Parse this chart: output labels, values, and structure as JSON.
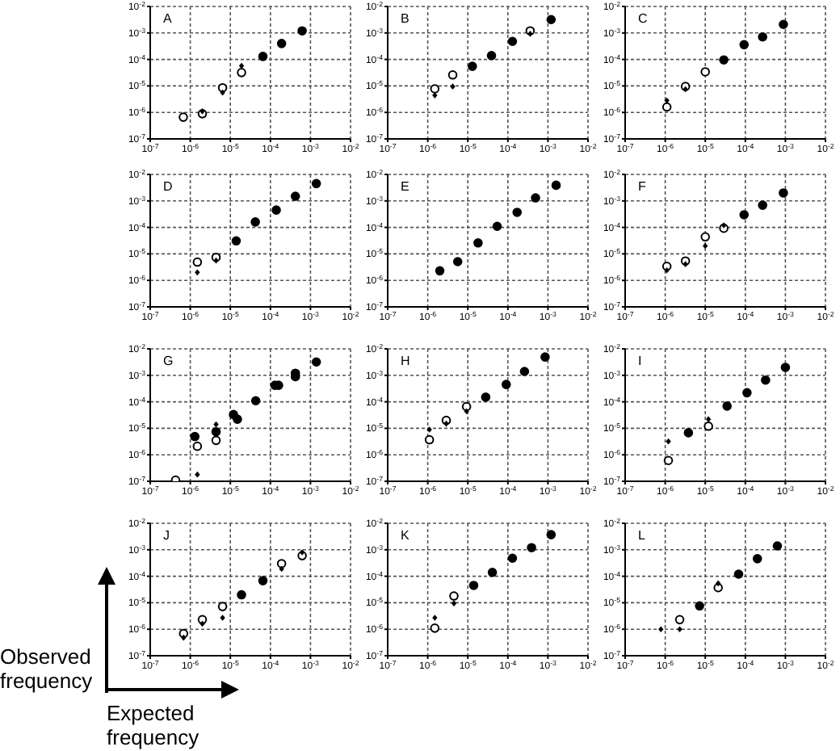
{
  "chart_data": [
    {
      "type": "scatter",
      "title": "A",
      "xlim": [
        1e-07,
        0.01
      ],
      "ylim": [
        1e-07,
        0.01
      ],
      "xticks": [
        {
          "value": 1e-07,
          "label": "10$^{-7}$"
        },
        {
          "value": 1e-06,
          "label": "10$^{-6}$"
        },
        {
          "value": 1e-05,
          "label": "10$^{-5}$"
        },
        {
          "value": 0.0001,
          "label": "10$^{-4}$"
        },
        {
          "value": 0.001,
          "label": "10$^{-3}$"
        },
        {
          "value": 0.01,
          "label": "10$^{-2}$"
        }
      ],
      "yticks": [
        {
          "value": 1e-07,
          "label": "10$^{-7}$"
        },
        {
          "value": 1e-06,
          "label": "10$^{-6}$"
        },
        {
          "value": 1e-05,
          "label": "10$^{-5}$"
        },
        {
          "value": 0.0001,
          "label": "10$^{-4}$"
        },
        {
          "value": 0.001,
          "label": "10$^{-3}$"
        },
        {
          "value": 0.01,
          "label": "10$^{-2}$"
        }
      ],
      "log": "xy",
      "grid": true,
      "series": [
        {
          "color": "#000000",
          "marker": "circle",
          "x": [
            0.00062,
            0.00019,
            6.5e-05
          ],
          "values": [
            0.0012,
            0.0004,
            0.00013
          ]
        },
        {
          "color": "#ffffff",
          "marker": "circle",
          "x": [
            1.9e-05,
            6.4e-06,
            2e-06,
            6.7e-07
          ],
          "values": [
            3.2e-05,
            8.5e-06,
            8.9e-07,
            6.6e-07
          ]
        },
        {
          "color": "#000000",
          "marker": "diamond",
          "x": [
            1.9e-05,
            6.4e-06,
            2e-06
          ],
          "values": [
            5.7e-05,
            5.6e-06,
            1.1e-06
          ]
        }
      ]
    },
    {
      "type": "scatter",
      "title": "B",
      "xlim": [
        1e-07,
        0.01
      ],
      "ylim": [
        1e-07,
        0.01
      ],
      "xticks": [
        {
          "value": 1e-07,
          "label": "10$^{-7}$"
        },
        {
          "value": 1e-06,
          "label": "10$^{-6}$"
        },
        {
          "value": 1e-05,
          "label": "10$^{-5}$"
        },
        {
          "value": 0.0001,
          "label": "10$^{-4}$"
        },
        {
          "value": 0.001,
          "label": "10$^{-3}$"
        },
        {
          "value": 0.01,
          "label": "10$^{-2}$"
        }
      ],
      "yticks": [
        {
          "value": 1e-07,
          "label": "10$^{-7}$"
        },
        {
          "value": 1e-06,
          "label": "10$^{-6}$"
        },
        {
          "value": 1e-05,
          "label": "10$^{-5}$"
        },
        {
          "value": 0.0001,
          "label": "10$^{-4}$"
        },
        {
          "value": 0.001,
          "label": "10$^{-3}$"
        },
        {
          "value": 0.01,
          "label": "10$^{-2}$"
        }
      ],
      "log": "xy",
      "grid": true,
      "series": [
        {
          "color": "#000000",
          "marker": "circle",
          "x": [
            0.0012,
            0.00013,
            3.9e-05,
            1.3e-05
          ],
          "values": [
            0.0032,
            0.00048,
            0.00014,
            5.5e-05
          ]
        },
        {
          "color": "#ffffff",
          "marker": "circle",
          "x": [
            0.00036,
            4.2e-06,
            1.5e-06
          ],
          "values": [
            0.0012,
            2.6e-05,
            7.8e-06
          ]
        },
        {
          "color": "#000000",
          "marker": "diamond",
          "x": [
            0.00036,
            4.2e-06,
            1.5e-06
          ],
          "values": [
            0.00093,
            9.5e-06,
            4.4e-06
          ]
        }
      ]
    },
    {
      "type": "scatter",
      "title": "C",
      "xlim": [
        1e-07,
        0.01
      ],
      "ylim": [
        1e-07,
        0.01
      ],
      "xticks": [
        {
          "value": 1e-07,
          "label": "10$^{-7}$"
        },
        {
          "value": 1e-06,
          "label": "10$^{-6}$"
        },
        {
          "value": 1e-05,
          "label": "10$^{-5}$"
        },
        {
          "value": 0.0001,
          "label": "10$^{-4}$"
        },
        {
          "value": 0.001,
          "label": "10$^{-3}$"
        },
        {
          "value": 0.01,
          "label": "10$^{-2}$"
        }
      ],
      "yticks": [
        {
          "value": 1e-07,
          "label": "10$^{-7}$"
        },
        {
          "value": 1e-06,
          "label": "10$^{-6}$"
        },
        {
          "value": 1e-05,
          "label": "10$^{-5}$"
        },
        {
          "value": 0.0001,
          "label": "10$^{-4}$"
        },
        {
          "value": 0.001,
          "label": "10$^{-3}$"
        },
        {
          "value": 0.01,
          "label": "10$^{-2}$"
        }
      ],
      "log": "xy",
      "grid": true,
      "series": [
        {
          "color": "#000000",
          "marker": "circle",
          "x": [
            0.00089,
            0.00027,
            9.3e-05,
            2.9e-05
          ],
          "values": [
            0.0021,
            0.00071,
            0.00036,
            9.6e-05
          ]
        },
        {
          "color": "#ffffff",
          "marker": "circle",
          "x": [
            1e-05,
            3.2e-06,
            1.1e-06
          ],
          "values": [
            3.4e-05,
            9.5e-06,
            1.6e-06
          ]
        },
        {
          "color": "#000000",
          "marker": "diamond",
          "x": [
            3.2e-06,
            1.1e-06
          ],
          "values": [
            7.5e-06,
            2.8e-06
          ]
        }
      ]
    },
    {
      "type": "scatter",
      "title": "D",
      "xlim": [
        1e-07,
        0.01
      ],
      "ylim": [
        1e-07,
        0.01
      ],
      "xticks": [
        {
          "value": 1e-07,
          "label": "10$^{-7}$"
        },
        {
          "value": 1e-06,
          "label": "10$^{-6}$"
        },
        {
          "value": 1e-05,
          "label": "10$^{-5}$"
        },
        {
          "value": 0.0001,
          "label": "10$^{-4}$"
        },
        {
          "value": 0.001,
          "label": "10$^{-3}$"
        },
        {
          "value": 0.01,
          "label": "10$^{-2}$"
        }
      ],
      "yticks": [
        {
          "value": 1e-07,
          "label": "10$^{-7}$"
        },
        {
          "value": 1e-06,
          "label": "10$^{-6}$"
        },
        {
          "value": 1e-05,
          "label": "10$^{-5}$"
        },
        {
          "value": 0.0001,
          "label": "10$^{-4}$"
        },
        {
          "value": 0.001,
          "label": "10$^{-3}$"
        },
        {
          "value": 0.01,
          "label": "10$^{-2}$"
        }
      ],
      "log": "xy",
      "grid": true,
      "series": [
        {
          "color": "#000000",
          "marker": "circle",
          "x": [
            0.0014,
            0.00042,
            0.00014,
            4.2e-05,
            1.4e-05
          ],
          "values": [
            0.0045,
            0.0015,
            0.00045,
            0.00016,
            3.1e-05
          ]
        },
        {
          "color": "#ffffff",
          "marker": "circle",
          "x": [
            4.4e-06,
            1.5e-06
          ],
          "values": [
            7.4e-06,
            4.9e-06
          ]
        },
        {
          "color": "#000000",
          "marker": "diamond",
          "x": [
            4.4e-06,
            1.5e-06
          ],
          "values": [
            5.6e-06,
            2e-06
          ]
        }
      ]
    },
    {
      "type": "scatter",
      "title": "E",
      "xlim": [
        1e-07,
        0.01
      ],
      "ylim": [
        1e-07,
        0.01
      ],
      "xticks": [
        {
          "value": 1e-07,
          "label": "10$^{-7}$"
        },
        {
          "value": 1e-06,
          "label": "10$^{-6}$"
        },
        {
          "value": 1e-05,
          "label": "10$^{-5}$"
        },
        {
          "value": 0.0001,
          "label": "10$^{-4}$"
        },
        {
          "value": 0.001,
          "label": "10$^{-3}$"
        },
        {
          "value": 0.01,
          "label": "10$^{-2}$"
        }
      ],
      "yticks": [
        {
          "value": 1e-07,
          "label": "10$^{-7}$"
        },
        {
          "value": 1e-06,
          "label": "10$^{-6}$"
        },
        {
          "value": 1e-05,
          "label": "10$^{-5}$"
        },
        {
          "value": 0.0001,
          "label": "10$^{-4}$"
        },
        {
          "value": 0.001,
          "label": "10$^{-3}$"
        },
        {
          "value": 0.01,
          "label": "10$^{-2}$"
        }
      ],
      "log": "xy",
      "grid": true,
      "series": [
        {
          "color": "#000000",
          "marker": "circle",
          "x": [
            0.0016,
            0.00049,
            0.00017,
            5.4e-05,
            1.8e-05,
            5.6e-06,
            2e-06
          ],
          "values": [
            0.0039,
            0.0013,
            0.00037,
            0.00011,
            2.6e-05,
            5.1e-06,
            2.3e-06
          ]
        }
      ]
    },
    {
      "type": "scatter",
      "title": "F",
      "xlim": [
        1e-07,
        0.01
      ],
      "ylim": [
        1e-07,
        0.01
      ],
      "xticks": [
        {
          "value": 1e-07,
          "label": "10$^{-7}$"
        },
        {
          "value": 1e-06,
          "label": "10$^{-6}$"
        },
        {
          "value": 1e-05,
          "label": "10$^{-5}$"
        },
        {
          "value": 0.0001,
          "label": "10$^{-4}$"
        },
        {
          "value": 0.001,
          "label": "10$^{-3}$"
        },
        {
          "value": 0.01,
          "label": "10$^{-2}$"
        }
      ],
      "yticks": [
        {
          "value": 1e-07,
          "label": "10$^{-7}$"
        },
        {
          "value": 1e-06,
          "label": "10$^{-6}$"
        },
        {
          "value": 1e-05,
          "label": "10$^{-5}$"
        },
        {
          "value": 0.0001,
          "label": "10$^{-4}$"
        },
        {
          "value": 0.001,
          "label": "10$^{-3}$"
        },
        {
          "value": 0.01,
          "label": "10$^{-2}$"
        }
      ],
      "log": "xy",
      "grid": true,
      "series": [
        {
          "color": "#000000",
          "marker": "circle",
          "x": [
            0.00089,
            0.00027,
            9.3e-05
          ],
          "values": [
            0.002,
            0.00069,
            0.0003
          ]
        },
        {
          "color": "#ffffff",
          "marker": "circle",
          "x": [
            2.9e-05,
            1e-05,
            3.2e-06,
            1.1e-06
          ],
          "values": [
            9.3e-05,
            4.4e-05,
            5.4e-06,
            3.4e-06
          ]
        },
        {
          "color": "#000000",
          "marker": "diamond",
          "x": [
            2.9e-05,
            1e-05,
            3.2e-06,
            1.1e-06
          ],
          "values": [
            0.00012,
            2e-05,
            4.1e-06,
            2.4e-06
          ]
        }
      ]
    },
    {
      "type": "scatter",
      "title": "G",
      "xlim": [
        1e-07,
        0.01
      ],
      "ylim": [
        1e-07,
        0.01
      ],
      "xticks": [
        {
          "value": 1e-07,
          "label": "10$^{-7}$"
        },
        {
          "value": 1e-06,
          "label": "10$^{-6}$"
        },
        {
          "value": 1e-05,
          "label": "10$^{-5}$"
        },
        {
          "value": 0.0001,
          "label": "10$^{-4}$"
        },
        {
          "value": 0.001,
          "label": "10$^{-3}$"
        },
        {
          "value": 0.01,
          "label": "10$^{-2}$"
        }
      ],
      "yticks": [
        {
          "value": 1e-07,
          "label": "10$^{-7}$"
        },
        {
          "value": 1e-06,
          "label": "10$^{-6}$"
        },
        {
          "value": 1e-05,
          "label": "10$^{-5}$"
        },
        {
          "value": 0.0001,
          "label": "10$^{-4}$"
        },
        {
          "value": 0.001,
          "label": "10$^{-3}$"
        },
        {
          "value": 0.01,
          "label": "10$^{-2}$"
        }
      ],
      "log": "xy",
      "grid": true,
      "series": [
        {
          "color": "#000000",
          "marker": "circle",
          "x": [
            0.0014,
            0.00042,
            0.00042,
            0.00013,
            0.00016,
            4.3e-05,
            1.2e-05,
            1.5e-05,
            4.4e-06,
            1.3e-06
          ],
          "values": [
            0.0032,
            0.0012,
            0.00089,
            0.00042,
            0.00042,
            0.00011,
            3.3e-05,
            2.2e-05,
            7.4e-06,
            4.9e-06
          ]
        },
        {
          "color": "#ffffff",
          "marker": "circle",
          "x": [
            4.4e-06,
            1.5e-06,
            4.3e-07
          ],
          "values": [
            3.5e-06,
            2.1e-06,
            1.1e-07
          ]
        },
        {
          "color": "#000000",
          "marker": "diamond",
          "x": [
            4.4e-06,
            1.5e-06
          ],
          "values": [
            1.4e-05,
            1.8e-07
          ]
        }
      ]
    },
    {
      "type": "scatter",
      "title": "H",
      "xlim": [
        1e-07,
        0.01
      ],
      "ylim": [
        1e-07,
        0.01
      ],
      "xticks": [
        {
          "value": 1e-07,
          "label": "10$^{-7}$"
        },
        {
          "value": 1e-06,
          "label": "10$^{-6}$"
        },
        {
          "value": 1e-05,
          "label": "10$^{-5}$"
        },
        {
          "value": 0.0001,
          "label": "10$^{-4}$"
        },
        {
          "value": 0.001,
          "label": "10$^{-3}$"
        },
        {
          "value": 0.01,
          "label": "10$^{-2}$"
        }
      ],
      "yticks": [
        {
          "value": 1e-07,
          "label": "10$^{-7}$"
        },
        {
          "value": 1e-06,
          "label": "10$^{-6}$"
        },
        {
          "value": 1e-05,
          "label": "10$^{-5}$"
        },
        {
          "value": 0.0001,
          "label": "10$^{-4}$"
        },
        {
          "value": 0.001,
          "label": "10$^{-3}$"
        },
        {
          "value": 0.01,
          "label": "10$^{-2}$"
        }
      ],
      "log": "xy",
      "grid": true,
      "series": [
        {
          "color": "#000000",
          "marker": "circle",
          "x": [
            0.00085,
            0.00026,
            9.1e-05,
            2.8e-05
          ],
          "values": [
            0.0049,
            0.0014,
            0.00045,
            0.00015
          ]
        },
        {
          "color": "#ffffff",
          "marker": "circle",
          "x": [
            9.3e-06,
            2.9e-06,
            1.1e-06
          ],
          "values": [
            6.6e-05,
            2e-05,
            3.7e-06
          ]
        },
        {
          "color": "#000000",
          "marker": "diamond",
          "x": [
            9.3e-06,
            2.9e-06,
            1.1e-06
          ],
          "values": [
            4.4e-05,
            1.5e-05,
            8.9e-06
          ]
        }
      ]
    },
    {
      "type": "scatter",
      "title": "I",
      "xlim": [
        1e-07,
        0.01
      ],
      "ylim": [
        1e-07,
        0.01
      ],
      "xticks": [
        {
          "value": 1e-07,
          "label": "10$^{-7}$"
        },
        {
          "value": 1e-06,
          "label": "10$^{-6}$"
        },
        {
          "value": 1e-05,
          "label": "10$^{-5}$"
        },
        {
          "value": 0.0001,
          "label": "10$^{-4}$"
        },
        {
          "value": 0.001,
          "label": "10$^{-3}$"
        },
        {
          "value": 0.01,
          "label": "10$^{-2}$"
        }
      ],
      "yticks": [
        {
          "value": 1e-07,
          "label": "10$^{-7}$"
        },
        {
          "value": 1e-06,
          "label": "10$^{-6}$"
        },
        {
          "value": 1e-05,
          "label": "10$^{-5}$"
        },
        {
          "value": 0.0001,
          "label": "10$^{-4}$"
        },
        {
          "value": 0.001,
          "label": "10$^{-3}$"
        },
        {
          "value": 0.01,
          "label": "10$^{-2}$"
        }
      ],
      "log": "xy",
      "grid": true,
      "series": [
        {
          "color": "#000000",
          "marker": "circle",
          "x": [
            0.001,
            0.00032,
            0.00011,
            3.5e-05,
            3.8e-06
          ],
          "values": [
            0.002,
            0.00066,
            0.00022,
            6.9e-05,
            6.8e-06
          ]
        },
        {
          "color": "#ffffff",
          "marker": "circle",
          "x": [
            1.2e-05,
            1.2e-06
          ],
          "values": [
            1.2e-05,
            6.1e-07
          ]
        },
        {
          "color": "#000000",
          "marker": "diamond",
          "x": [
            1.2e-05,
            1.2e-06
          ],
          "values": [
            2.2e-05,
            3.2e-06
          ]
        }
      ]
    },
    {
      "type": "scatter",
      "title": "J",
      "xlabel": "Expected frequency",
      "ylabel": "Observed frequency",
      "xlim": [
        1e-07,
        0.01
      ],
      "ylim": [
        1e-07,
        0.01
      ],
      "xticks": [
        {
          "value": 1e-07,
          "label": "10$^{-7}$"
        },
        {
          "value": 1e-06,
          "label": "10$^{-6}$"
        },
        {
          "value": 1e-05,
          "label": "10$^{-5}$"
        },
        {
          "value": 0.0001,
          "label": "10$^{-4}$"
        },
        {
          "value": 0.001,
          "label": "10$^{-3}$"
        },
        {
          "value": 0.01,
          "label": "10$^{-2}$"
        }
      ],
      "yticks": [
        {
          "value": 1e-07,
          "label": "10$^{-7}$"
        },
        {
          "value": 1e-06,
          "label": "10$^{-6}$"
        },
        {
          "value": 1e-05,
          "label": "10$^{-5}$"
        },
        {
          "value": 0.0001,
          "label": "10$^{-4}$"
        },
        {
          "value": 0.001,
          "label": "10$^{-3}$"
        },
        {
          "value": 0.01,
          "label": "10$^{-2}$"
        }
      ],
      "log": "xy",
      "grid": true,
      "series": [
        {
          "color": "#000000",
          "marker": "circle",
          "x": [
            6.5e-05,
            1.9e-05
          ],
          "values": [
            6.8e-05,
            2e-05
          ]
        },
        {
          "color": "#ffffff",
          "marker": "circle",
          "x": [
            0.00062,
            0.00019,
            6.4e-06,
            2e-06,
            6.8e-07
          ],
          "values": [
            0.0006,
            0.0003,
            7.2e-06,
            2.3e-06,
            6.9e-07
          ]
        },
        {
          "color": "#000000",
          "marker": "diamond",
          "x": [
            0.00062,
            0.00019,
            6.4e-06,
            2e-06,
            6.8e-07
          ],
          "values": [
            0.0008,
            0.00019,
            2.7e-06,
            1.6e-06,
            4.8e-07
          ]
        }
      ]
    },
    {
      "type": "scatter",
      "title": "K",
      "xlim": [
        1e-07,
        0.01
      ],
      "ylim": [
        1e-07,
        0.01
      ],
      "xticks": [
        {
          "value": 1e-07,
          "label": "10$^{-7}$"
        },
        {
          "value": 1e-06,
          "label": "10$^{-6}$"
        },
        {
          "value": 1e-05,
          "label": "10$^{-5}$"
        },
        {
          "value": 0.0001,
          "label": "10$^{-4}$"
        },
        {
          "value": 0.001,
          "label": "10$^{-3}$"
        },
        {
          "value": 0.01,
          "label": "10$^{-2}$"
        }
      ],
      "yticks": [
        {
          "value": 1e-07,
          "label": "10$^{-7}$"
        },
        {
          "value": 1e-06,
          "label": "10$^{-6}$"
        },
        {
          "value": 1e-05,
          "label": "10$^{-5}$"
        },
        {
          "value": 0.0001,
          "label": "10$^{-4}$"
        },
        {
          "value": 0.001,
          "label": "10$^{-3}$"
        },
        {
          "value": 0.01,
          "label": "10$^{-2}$"
        }
      ],
      "log": "xy",
      "grid": true,
      "series": [
        {
          "color": "#000000",
          "marker": "circle",
          "x": [
            0.0012,
            0.00039,
            0.00013,
            4.1e-05,
            1.4e-05
          ],
          "values": [
            0.0037,
            0.0012,
            0.00048,
            0.00014,
            4.5e-05
          ]
        },
        {
          "color": "#ffffff",
          "marker": "circle",
          "x": [
            4.5e-06,
            1.5e-06
          ],
          "values": [
            1.8e-05,
            1.1e-06
          ]
        },
        {
          "color": "#000000",
          "marker": "diamond",
          "x": [
            4.5e-06,
            1.5e-06
          ],
          "values": [
            9.5e-06,
            2.7e-06
          ]
        }
      ]
    },
    {
      "type": "scatter",
      "title": "L",
      "xlim": [
        1e-07,
        0.01
      ],
      "ylim": [
        1e-07,
        0.01
      ],
      "xticks": [
        {
          "value": 1e-07,
          "label": "10$^{-7}$"
        },
        {
          "value": 1e-06,
          "label": "10$^{-6}$"
        },
        {
          "value": 1e-05,
          "label": "10$^{-5}$"
        },
        {
          "value": 0.0001,
          "label": "10$^{-4}$"
        },
        {
          "value": 0.001,
          "label": "10$^{-3}$"
        },
        {
          "value": 0.01,
          "label": "10$^{-2}$"
        }
      ],
      "yticks": [
        {
          "value": 1e-07,
          "label": "10$^{-7}$"
        },
        {
          "value": 1e-06,
          "label": "10$^{-6}$"
        },
        {
          "value": 1e-05,
          "label": "10$^{-5}$"
        },
        {
          "value": 0.0001,
          "label": "10$^{-4}$"
        },
        {
          "value": 0.001,
          "label": "10$^{-3}$"
        },
        {
          "value": 0.01,
          "label": "10$^{-2}$"
        }
      ],
      "log": "xy",
      "grid": true,
      "series": [
        {
          "color": "#000000",
          "marker": "circle",
          "x": [
            0.00063,
            0.0002,
            6.8e-05,
            7.2e-06
          ],
          "values": [
            0.0014,
            0.00046,
            0.00012,
            7.6e-06
          ]
        },
        {
          "color": "#ffffff",
          "marker": "circle",
          "x": [
            2.1e-05,
            2.3e-06
          ],
          "values": [
            3.7e-05,
            2.3e-06
          ]
        },
        {
          "color": "#000000",
          "marker": "diamond",
          "x": [
            2.1e-05,
            2.3e-06,
            7.8e-07
          ],
          "values": [
            5.4e-05,
            1e-06,
            1e-06
          ]
        }
      ]
    }
  ]
}
